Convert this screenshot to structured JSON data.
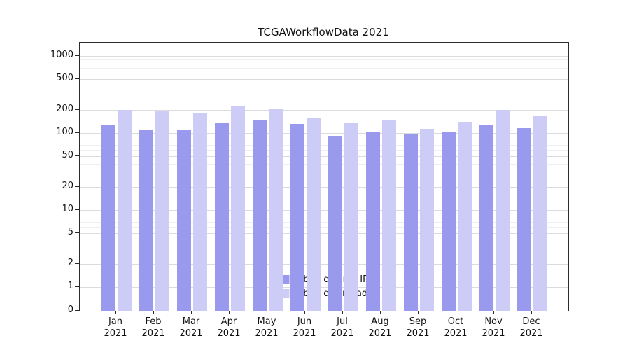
{
  "chart_data": {
    "type": "bar",
    "title": "TCGAWorkflowData 2021",
    "categories": [
      "Jan",
      "Feb",
      "Mar",
      "Apr",
      "May",
      "Jun",
      "Jul",
      "Aug",
      "Sep",
      "Oct",
      "Nov",
      "Dec"
    ],
    "category_sublabel": "2021",
    "series": [
      {
        "name": "Nb of distinct IPs",
        "color": "#9999ed",
        "values": [
          125,
          110,
          112,
          135,
          150,
          130,
          92,
          105,
          97,
          105,
          127,
          115
        ]
      },
      {
        "name": "Nb of downloads",
        "color": "#ccccf6",
        "values": [
          200,
          190,
          185,
          225,
          205,
          155,
          135,
          150,
          113,
          140,
          198,
          170
        ]
      }
    ],
    "yscale": "log-with-zero",
    "y_ticks": [
      0,
      1,
      2,
      5,
      10,
      20,
      50,
      100,
      200,
      500,
      1000
    ],
    "ylim": [
      0,
      1400
    ],
    "grid": true,
    "legend_position": "bottom-center-inside",
    "axis_color": "#2b2b2b",
    "grid_major_color": "#dcdcdc",
    "grid_minor_color": "#efefef"
  }
}
